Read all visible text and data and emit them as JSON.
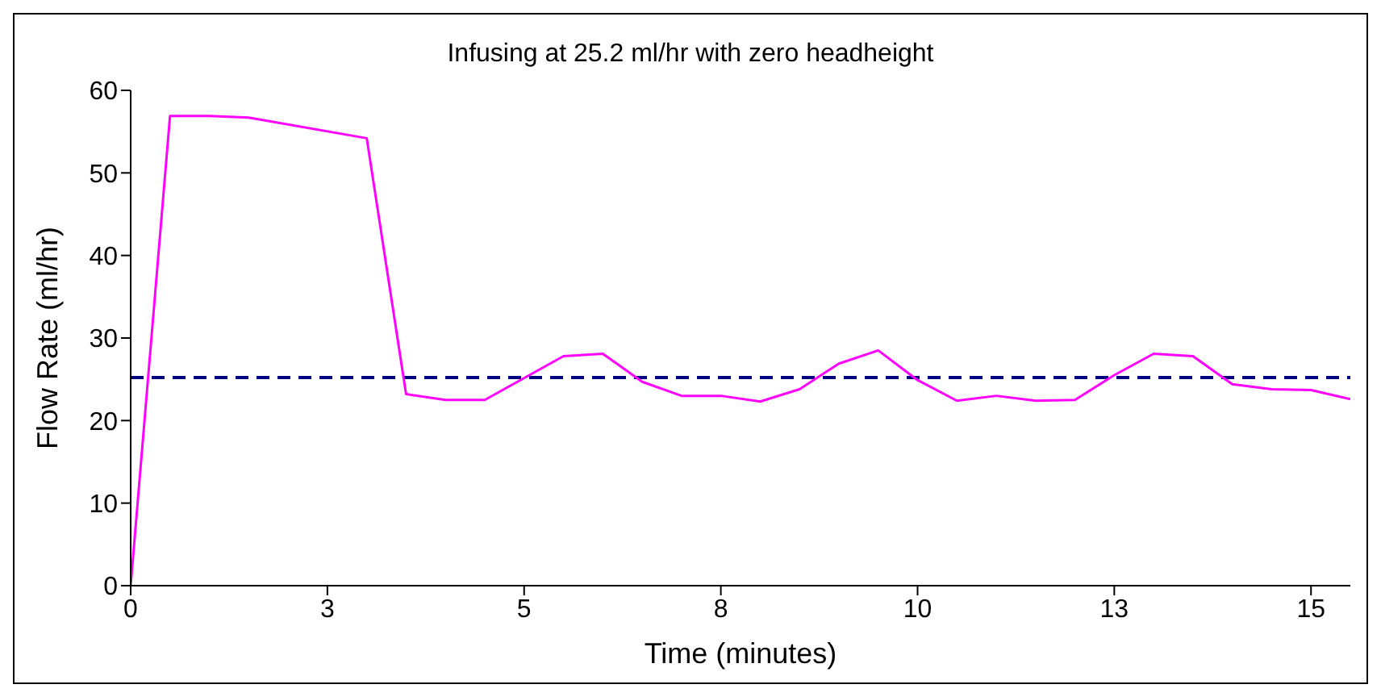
{
  "chart_data": {
    "type": "line",
    "title": "Infusing at 25.2 ml/hr with zero headheight",
    "xlabel": "Time (minutes)",
    "ylabel": "Flow Rate (ml/hr)",
    "x": [
      0,
      0.5,
      1,
      1.5,
      3,
      3.5,
      4,
      4.5,
      5.5,
      6,
      6.5,
      7,
      7.5,
      8,
      8.5,
      9,
      9.5,
      10,
      10.5,
      11,
      11.5,
      12,
      12.5,
      13,
      13.5,
      14,
      14.5,
      15,
      15.5
    ],
    "series": [
      {
        "color": "#ff00ff",
        "values": [
          0,
          56.9,
          56.9,
          56.7,
          54.2,
          23.2,
          22.5,
          22.5,
          27.8,
          28.1,
          24.7,
          23,
          23,
          22.3,
          23.8,
          26.9,
          28.5,
          24.9,
          22.4,
          23,
          22.4,
          22.5,
          25.5,
          28.1,
          27.8,
          24.4,
          23.8,
          23.7,
          22.6
        ]
      }
    ],
    "xlim": [
      0,
      15.5
    ],
    "xticks": [
      0,
      {
        "value": 2.5,
        "label": "3"
      },
      5,
      {
        "value": 7.5,
        "label": "8"
      },
      10,
      {
        "value": 12.5,
        "label": "13"
      },
      15
    ],
    "ylim": [
      0,
      60
    ],
    "yticks": [
      0,
      10,
      20,
      30,
      40,
      50,
      60
    ],
    "grid": false,
    "legend": false,
    "marker": "none",
    "line_style": "solid",
    "ref_lines": [
      {
        "axis": "y",
        "value": 25.2,
        "color": "#000080",
        "line_style": "dashed"
      }
    ]
  }
}
